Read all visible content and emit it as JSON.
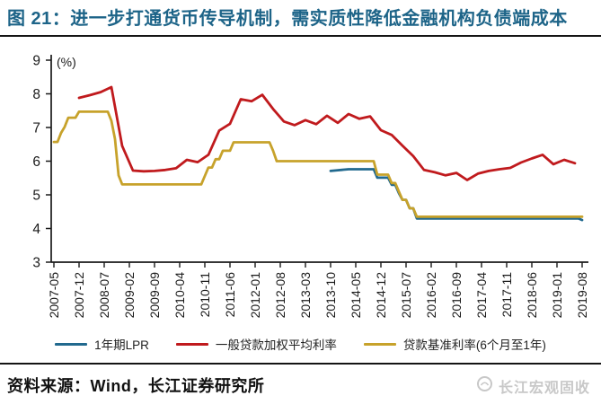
{
  "header": {
    "title": "图 21：进一步打通货币传导机制，需实质性降低金融机构负债端成本",
    "title_color": "#1d6488"
  },
  "footer": {
    "source": "资料来源：Wind，长江证券研究所",
    "watermark": "长江宏观固收"
  },
  "chart_data": {
    "type": "line",
    "unit_label": "(%)",
    "ylim": [
      3,
      9
    ],
    "yticks": [
      9,
      8,
      7,
      6,
      5,
      4,
      3
    ],
    "grid": false,
    "legend_position": "bottom",
    "axis_color": "#1a1a1a",
    "x_months_start": "2007-05",
    "x_months_total": 148,
    "x_tick_month_indices": [
      0,
      7,
      14,
      21,
      28,
      35,
      42,
      49,
      56,
      63,
      70,
      77,
      84,
      91,
      98,
      105,
      112,
      119,
      126,
      133,
      140,
      147
    ],
    "x_tick_labels": [
      "2007-05",
      "2007-12",
      "2008-07",
      "2009-02",
      "2009-09",
      "2010-04",
      "2010-11",
      "2011-06",
      "2012-01",
      "2012-08",
      "2013-03",
      "2013-10",
      "2014-05",
      "2014-12",
      "2015-07",
      "2016-02",
      "2016-09",
      "2017-04",
      "2017-11",
      "2018-06",
      "2019-01",
      "2019-08"
    ],
    "series": [
      {
        "name": "1年期LPR",
        "color": "#21698e",
        "points": [
          [
            77,
            5.71
          ],
          [
            79,
            5.73
          ],
          [
            82,
            5.76
          ],
          [
            89,
            5.76
          ],
          [
            90,
            5.51
          ],
          [
            93,
            5.51
          ],
          [
            94,
            5.3
          ],
          [
            95,
            5.3
          ],
          [
            96,
            5.05
          ],
          [
            97,
            4.85
          ],
          [
            98,
            4.85
          ],
          [
            99,
            4.6
          ],
          [
            100,
            4.6
          ],
          [
            101,
            4.3
          ],
          [
            146,
            4.3
          ],
          [
            147,
            4.25
          ]
        ]
      },
      {
        "name": "一般贷款加权平均利率",
        "color": "#c01a1d",
        "points": [
          [
            7,
            7.88
          ],
          [
            10,
            7.96
          ],
          [
            13,
            8.05
          ],
          [
            16,
            8.2
          ],
          [
            19,
            6.45
          ],
          [
            22,
            5.72
          ],
          [
            25,
            5.7
          ],
          [
            28,
            5.71
          ],
          [
            31,
            5.74
          ],
          [
            34,
            5.79
          ],
          [
            37,
            6.04
          ],
          [
            40,
            5.97
          ],
          [
            43,
            6.19
          ],
          [
            46,
            6.91
          ],
          [
            49,
            7.11
          ],
          [
            52,
            7.84
          ],
          [
            55,
            7.78
          ],
          [
            58,
            7.97
          ],
          [
            61,
            7.55
          ],
          [
            64,
            7.18
          ],
          [
            67,
            7.07
          ],
          [
            70,
            7.22
          ],
          [
            73,
            7.1
          ],
          [
            76,
            7.35
          ],
          [
            79,
            7.14
          ],
          [
            82,
            7.4
          ],
          [
            85,
            7.26
          ],
          [
            88,
            7.33
          ],
          [
            91,
            6.92
          ],
          [
            94,
            6.78
          ],
          [
            97,
            6.46
          ],
          [
            100,
            6.15
          ],
          [
            103,
            5.74
          ],
          [
            106,
            5.67
          ],
          [
            109,
            5.58
          ],
          [
            112,
            5.65
          ],
          [
            115,
            5.44
          ],
          [
            118,
            5.63
          ],
          [
            121,
            5.71
          ],
          [
            124,
            5.76
          ],
          [
            127,
            5.8
          ],
          [
            130,
            5.96
          ],
          [
            133,
            6.08
          ],
          [
            136,
            6.19
          ],
          [
            139,
            5.91
          ],
          [
            142,
            6.04
          ],
          [
            145,
            5.94
          ]
        ]
      },
      {
        "name": "贷款基准利率(6个月至1年)",
        "color": "#c7a22b",
        "points": [
          [
            0,
            6.57
          ],
          [
            1,
            6.57
          ],
          [
            2,
            6.84
          ],
          [
            3,
            7.02
          ],
          [
            4,
            7.29
          ],
          [
            6,
            7.29
          ],
          [
            7,
            7.47
          ],
          [
            15,
            7.47
          ],
          [
            16,
            7.2
          ],
          [
            17,
            6.66
          ],
          [
            18,
            5.58
          ],
          [
            19,
            5.31
          ],
          [
            41,
            5.31
          ],
          [
            42,
            5.56
          ],
          [
            43,
            5.81
          ],
          [
            44,
            5.81
          ],
          [
            45,
            6.06
          ],
          [
            46,
            6.06
          ],
          [
            47,
            6.31
          ],
          [
            49,
            6.31
          ],
          [
            50,
            6.56
          ],
          [
            60,
            6.56
          ],
          [
            61,
            6.31
          ],
          [
            62,
            6.0
          ],
          [
            89,
            6.0
          ],
          [
            90,
            5.6
          ],
          [
            93,
            5.6
          ],
          [
            94,
            5.35
          ],
          [
            95,
            5.35
          ],
          [
            96,
            5.1
          ],
          [
            97,
            4.85
          ],
          [
            98,
            4.85
          ],
          [
            99,
            4.6
          ],
          [
            100,
            4.6
          ],
          [
            101,
            4.35
          ],
          [
            147,
            4.35
          ]
        ]
      }
    ]
  }
}
